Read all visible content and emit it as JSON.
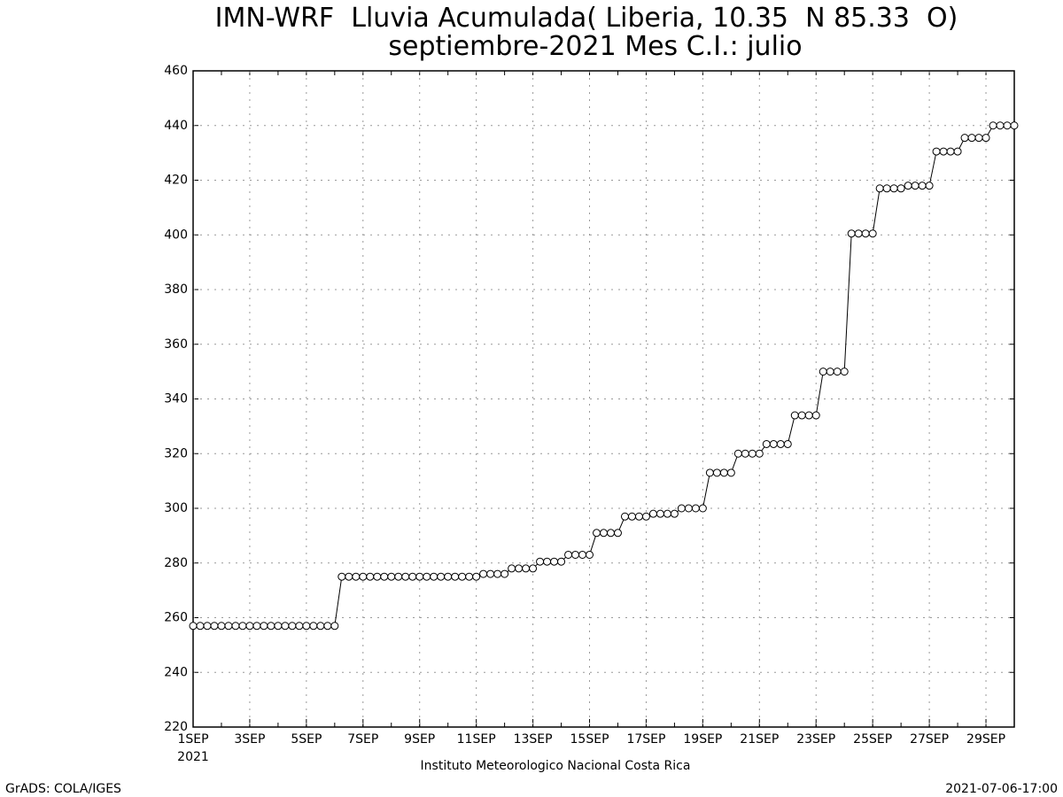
{
  "chart_data": {
    "type": "line",
    "title": "IMN-WRF  Lluvia Acumulada( Liberia, 10.35  N 85.33  O)",
    "subtitle": "septiembre-2021 Mes C.I.: julio",
    "x_label": "Instituto Meteorologico Nacional Costa Rica",
    "x_year_label": "2021",
    "footer_left": "GrADS: COLA/IGES",
    "footer_right": "2021-07-06-17:00",
    "color": "#000000",
    "marker": "circle",
    "grid": true,
    "ylim": [
      220,
      460
    ],
    "yticks": [
      220,
      240,
      260,
      280,
      300,
      320,
      340,
      360,
      380,
      400,
      420,
      440,
      460
    ],
    "categories": [
      "1SEP",
      null,
      null,
      null,
      null,
      null,
      null,
      null,
      "3SEP",
      null,
      null,
      null,
      null,
      null,
      null,
      null,
      "5SEP",
      null,
      null,
      null,
      null,
      null,
      null,
      null,
      "7SEP",
      null,
      null,
      null,
      null,
      null,
      null,
      null,
      "9SEP",
      null,
      null,
      null,
      null,
      null,
      null,
      null,
      "11SEP",
      null,
      null,
      null,
      null,
      null,
      null,
      null,
      "13SEP",
      null,
      null,
      null,
      null,
      null,
      null,
      null,
      "15SEP",
      null,
      null,
      null,
      null,
      null,
      null,
      null,
      "17SEP",
      null,
      null,
      null,
      null,
      null,
      null,
      null,
      "19SEP",
      null,
      null,
      null,
      null,
      null,
      null,
      null,
      "21SEP",
      null,
      null,
      null,
      null,
      null,
      null,
      null,
      "23SEP",
      null,
      null,
      null,
      null,
      null,
      null,
      null,
      "25SEP",
      null,
      null,
      null,
      null,
      null,
      null,
      null,
      "27SEP",
      null,
      null,
      null,
      null,
      null,
      null,
      null,
      "29SEP",
      null,
      null,
      null,
      null
    ],
    "values": [
      257,
      257,
      257,
      257,
      257,
      257,
      257,
      257,
      257,
      257,
      257,
      257,
      257,
      257,
      257,
      257,
      257,
      257,
      257,
      257,
      257,
      275,
      275,
      275,
      275,
      275,
      275,
      275,
      275,
      275,
      275,
      275,
      275,
      275,
      275,
      275,
      275,
      275,
      275,
      275,
      275,
      276,
      276,
      276,
      276,
      278,
      278,
      278,
      278,
      280.5,
      280.5,
      280.5,
      280.5,
      283,
      283,
      283,
      283,
      291,
      291,
      291,
      291,
      297,
      297,
      297,
      297,
      298,
      298,
      298,
      298,
      300,
      300,
      300,
      300,
      313,
      313,
      313,
      313,
      320,
      320,
      320,
      320,
      323.5,
      323.5,
      323.5,
      323.5,
      334,
      334,
      334,
      334,
      350,
      350,
      350,
      350,
      400.5,
      400.5,
      400.5,
      400.5,
      417,
      417,
      417,
      417,
      418,
      418,
      418,
      418,
      430.5,
      430.5,
      430.5,
      430.5,
      435.5,
      435.5,
      435.5,
      435.5,
      440,
      440,
      440,
      440
    ]
  }
}
